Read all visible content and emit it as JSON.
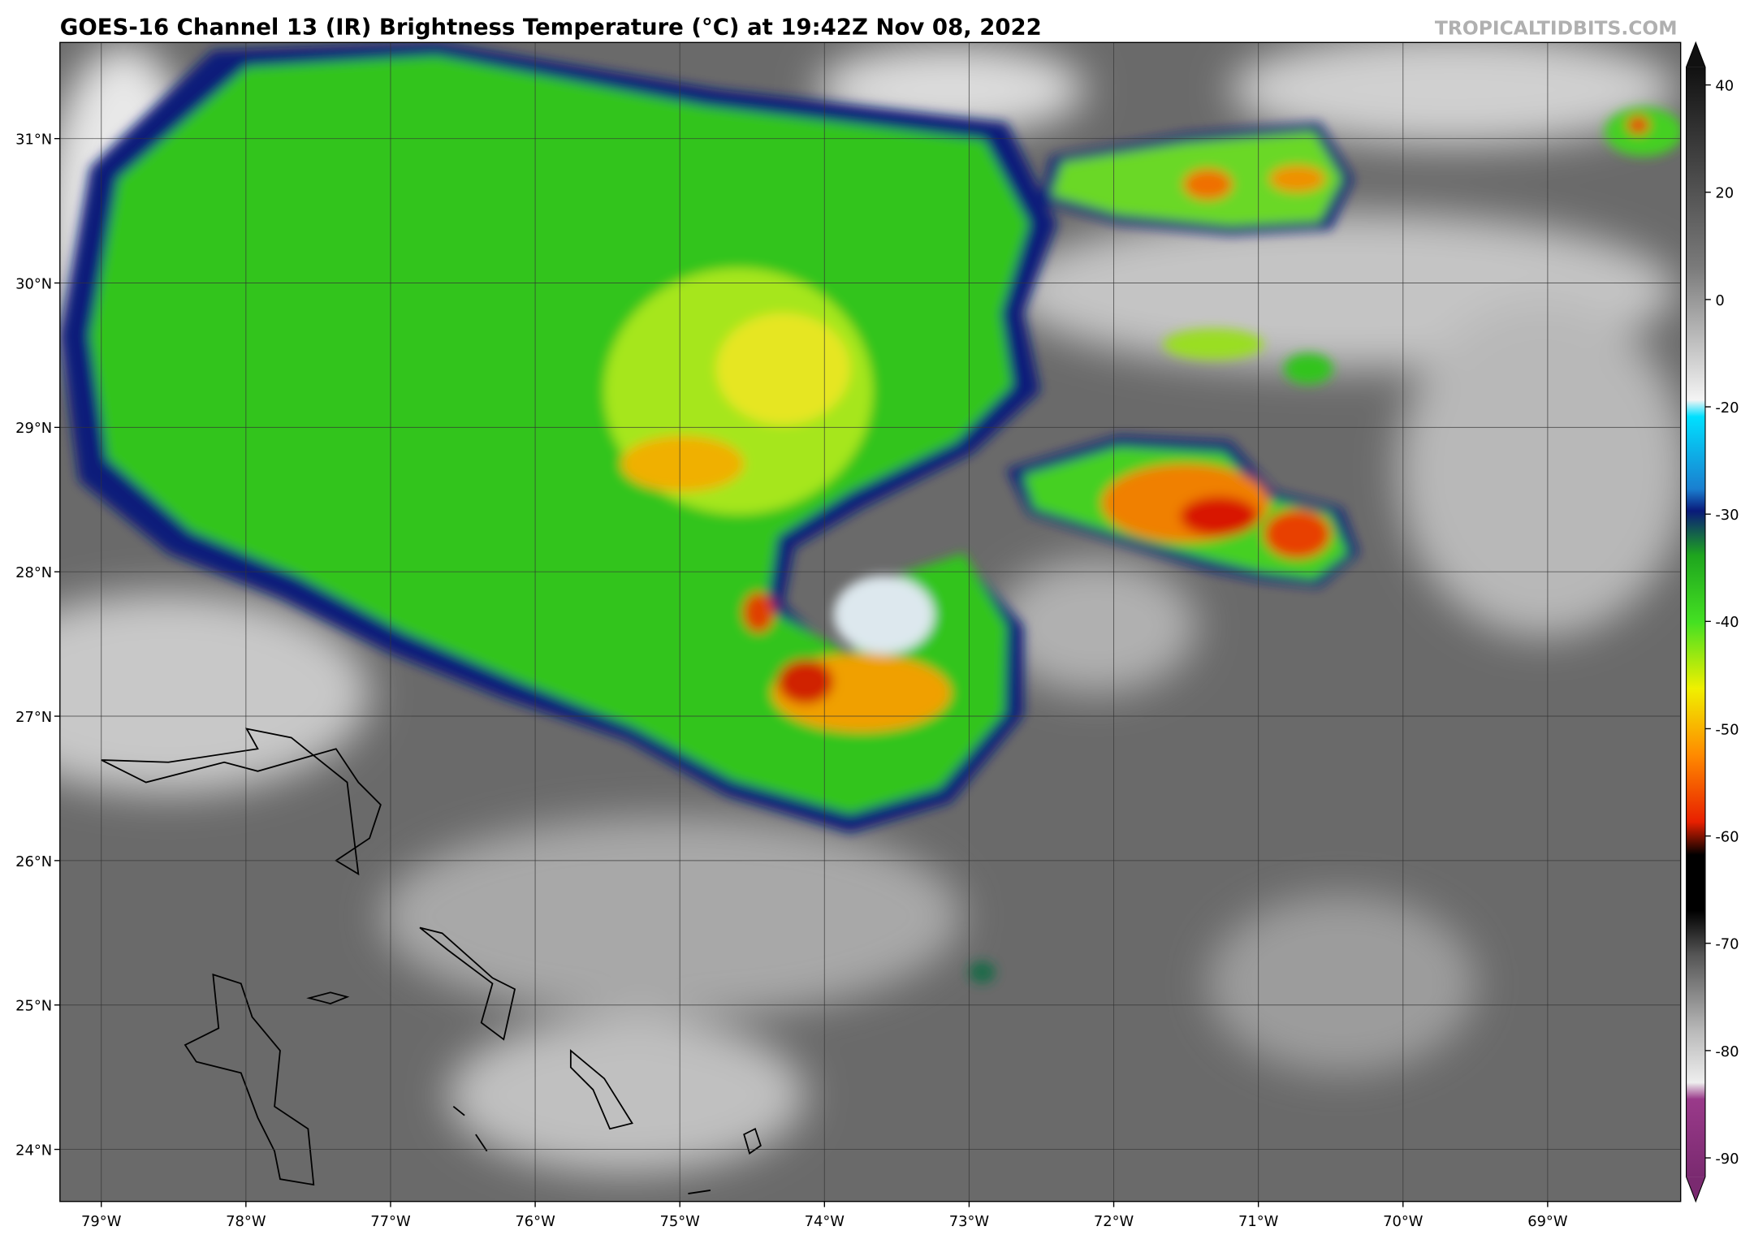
{
  "header": {
    "title": "GOES-16 Channel 13 (IR) Brightness Temperature (°C) at 19:42Z Nov 08, 2022",
    "credit": "TROPICALTIDBITS.COM"
  },
  "map": {
    "lat_labels": [
      "31°N",
      "30°N",
      "29°N",
      "28°N",
      "27°N",
      "26°N",
      "25°N",
      "24°N"
    ],
    "lon_labels": [
      "79°W",
      "78°W",
      "77°W",
      "76°W",
      "75°W",
      "74°W",
      "73°W",
      "72°W",
      "71°W",
      "70°W",
      "69°W"
    ]
  },
  "colorbar": {
    "ticks": [
      40,
      20,
      0,
      -20,
      -30,
      -40,
      -50,
      -60,
      -70,
      -80,
      -90
    ]
  }
}
